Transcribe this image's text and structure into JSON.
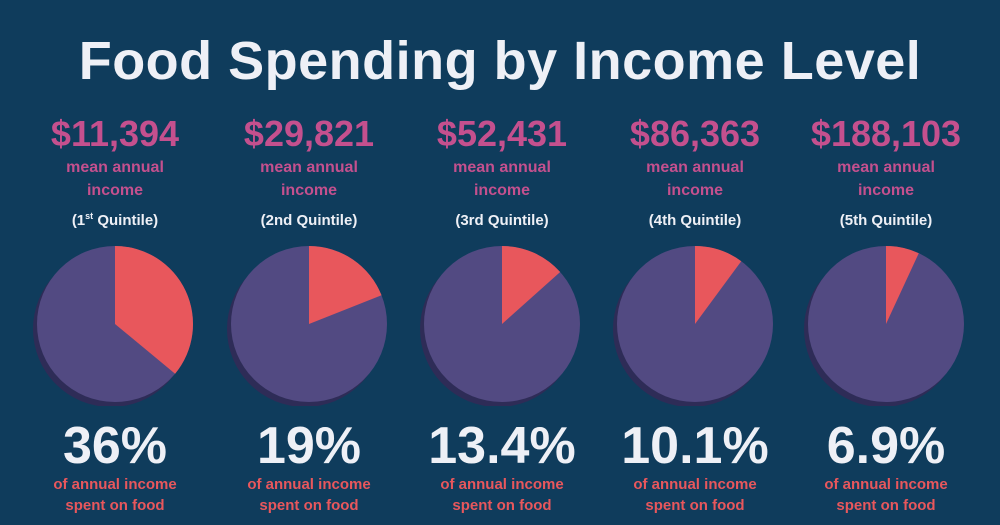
{
  "title": "Food Spending by Income Level",
  "labels": {
    "income_label": "mean annual income",
    "percent_label_line1": "of annual income",
    "percent_label_line2": "spent on food"
  },
  "colors": {
    "background": "#0f3c5c",
    "pie_base": "#524a82",
    "pie_shadow": "#2e2c57",
    "food_slice": "#e8575c",
    "income_text": "#c4508e",
    "percent_label_text": "#e8575c",
    "white_text": "#eef0f6"
  },
  "chart_data": {
    "type": "pie",
    "title": "Food Spending by Income Level",
    "categories": [
      "(1st Quintile)",
      "(2nd Quintile)",
      "(3rd Quintile)",
      "(4th Quintile)",
      "(5th Quintile)"
    ],
    "values": [
      36,
      19,
      13.4,
      10.1,
      6.9
    ],
    "columns": [
      {
        "income": "$11,394",
        "quintile_main": "(1",
        "quintile_sup": "st",
        "quintile_rest": " Quintile)",
        "percent_text": "36%",
        "food_share": 36
      },
      {
        "income": "$29,821",
        "quintile_main": "(2nd Quintile)",
        "quintile_sup": "",
        "quintile_rest": "",
        "percent_text": "19%",
        "food_share": 19
      },
      {
        "income": "$52,431",
        "quintile_main": "(3rd Quintile)",
        "quintile_sup": "",
        "quintile_rest": "",
        "percent_text": "13.4%",
        "food_share": 13.4
      },
      {
        "income": "$86,363",
        "quintile_main": "(4th Quintile)",
        "quintile_sup": "",
        "quintile_rest": "",
        "percent_text": "10.1%",
        "food_share": 10.1
      },
      {
        "income": "$188,103",
        "quintile_main": "(5th Quintile)",
        "quintile_sup": "",
        "quintile_rest": "",
        "percent_text": "6.9%",
        "food_share": 6.9
      }
    ]
  }
}
